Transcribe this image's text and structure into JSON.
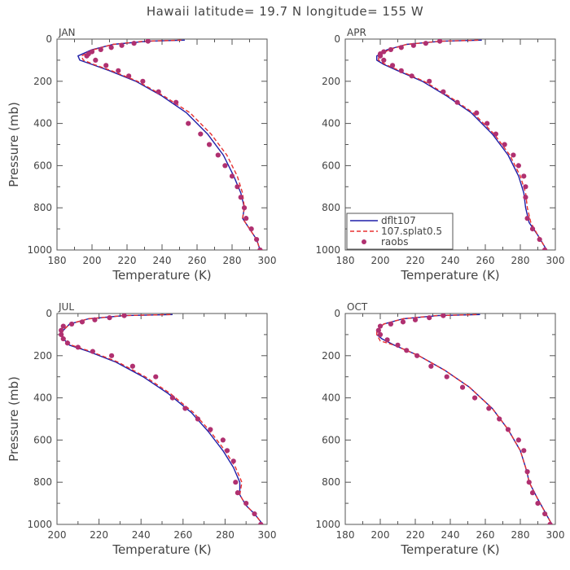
{
  "title": "Hawaii  latitude= 19.7 N longitude= 155 W",
  "colors": {
    "dflt": "#1f1fa8",
    "splat": "#e83030",
    "raobs": "#b03070",
    "axis": "#555555"
  },
  "legend": {
    "entries": [
      "dflt107",
      "107.splat0.5",
      "raobs"
    ],
    "panel": 1
  },
  "chart_data": [
    {
      "type": "line",
      "title": "JAN",
      "xlabel": "Temperature (K)",
      "ylabel": "Pressure (mb)",
      "xlim": [
        180,
        300
      ],
      "ylim": [
        1000,
        0
      ],
      "xticks": [
        "180",
        "200",
        "220",
        "240",
        "260",
        "280",
        "300"
      ],
      "yticks": [
        "0",
        "200",
        "400",
        "600",
        "800",
        "1000"
      ],
      "series": [
        {
          "name": "dflt107",
          "style": "solid",
          "x": [
            253,
            232,
            212,
            200,
            192,
            193,
            200,
            210,
            225,
            240,
            254,
            266,
            275,
            281,
            285,
            287,
            286,
            290,
            294,
            296
          ],
          "y": [
            5,
            10,
            25,
            50,
            80,
            100,
            120,
            150,
            200,
            270,
            350,
            450,
            550,
            650,
            730,
            800,
            850,
            900,
            950,
            1000
          ]
        },
        {
          "name": "107.splat0.5",
          "style": "dashed",
          "x": [
            251,
            230,
            212,
            201,
            194,
            195,
            201,
            211,
            226,
            241,
            256,
            268,
            277,
            283,
            286,
            287,
            286,
            290,
            294,
            296
          ],
          "y": [
            5,
            10,
            25,
            50,
            80,
            100,
            120,
            150,
            200,
            270,
            350,
            450,
            550,
            650,
            730,
            800,
            850,
            900,
            950,
            1000
          ]
        },
        {
          "name": "raobs",
          "style": "dots",
          "x": [
            232,
            224,
            217,
            211,
            205,
            200,
            198,
            197,
            202,
            208,
            215,
            221,
            229,
            238,
            248,
            255,
            262,
            267,
            272,
            276,
            280,
            283,
            285,
            287,
            288,
            291,
            294,
            296
          ],
          "y": [
            10,
            20,
            30,
            40,
            50,
            60,
            70,
            80,
            100,
            125,
            150,
            175,
            200,
            250,
            300,
            400,
            450,
            500,
            550,
            600,
            650,
            700,
            750,
            800,
            850,
            900,
            950,
            1000
          ]
        }
      ]
    },
    {
      "type": "line",
      "title": "APR",
      "xlabel": "Temperature (K)",
      "ylabel": "",
      "xlim": [
        180,
        300
      ],
      "ylim": [
        1000,
        0
      ],
      "xticks": [
        "180",
        "200",
        "220",
        "240",
        "260",
        "280",
        "300"
      ],
      "yticks": [
        "0",
        "200",
        "400",
        "600",
        "800",
        "1000"
      ],
      "series": [
        {
          "name": "dflt107",
          "style": "solid",
          "x": [
            258,
            235,
            215,
            204,
            198,
            198,
            202,
            210,
            224,
            238,
            252,
            264,
            273,
            279,
            282,
            283,
            285,
            290,
            295
          ],
          "y": [
            5,
            10,
            25,
            50,
            80,
            100,
            120,
            150,
            200,
            270,
            350,
            450,
            550,
            650,
            730,
            800,
            870,
            930,
            1000
          ]
        },
        {
          "name": "107.splat0.5",
          "style": "dashed",
          "x": [
            256,
            234,
            215,
            205,
            199,
            199,
            203,
            211,
            225,
            239,
            253,
            265,
            274,
            280,
            283,
            284,
            286,
            290,
            295
          ],
          "y": [
            5,
            10,
            25,
            50,
            80,
            100,
            120,
            150,
            200,
            270,
            350,
            450,
            550,
            650,
            730,
            800,
            870,
            930,
            1000
          ]
        },
        {
          "name": "raobs",
          "style": "dots",
          "x": [
            234,
            226,
            219,
            212,
            206,
            202,
            200,
            200,
            202,
            207,
            212,
            218,
            228,
            236,
            244,
            255,
            261,
            266,
            271,
            276,
            279,
            282,
            283,
            283,
            284,
            287,
            291,
            294
          ],
          "y": [
            10,
            20,
            30,
            40,
            50,
            60,
            70,
            80,
            100,
            125,
            150,
            175,
            200,
            250,
            300,
            350,
            400,
            450,
            500,
            550,
            600,
            650,
            700,
            750,
            850,
            900,
            950,
            1000
          ]
        }
      ]
    },
    {
      "type": "line",
      "title": "JUL",
      "xlabel": "Temperature (K)",
      "ylabel": "Pressure (mb)",
      "xlim": [
        200,
        300
      ],
      "ylim": [
        1000,
        0
      ],
      "xticks": [
        "200",
        "220",
        "240",
        "260",
        "280",
        "300"
      ],
      "yticks": [
        "0",
        "200",
        "400",
        "600",
        "800",
        "1000"
      ],
      "series": [
        {
          "name": "dflt107",
          "style": "solid",
          "x": [
            255,
            232,
            215,
            206,
            203,
            202,
            203,
            206,
            215,
            228,
            241,
            253,
            264,
            272,
            279,
            284,
            287,
            287,
            290,
            294,
            298
          ],
          "y": [
            5,
            10,
            25,
            50,
            80,
            100,
            120,
            150,
            180,
            230,
            300,
            380,
            470,
            560,
            650,
            730,
            800,
            860,
            910,
            950,
            1000
          ]
        },
        {
          "name": "107.splat0.5",
          "style": "dashed",
          "x": [
            254,
            231,
            215,
            206,
            203,
            202,
            204,
            207,
            216,
            229,
            242,
            254,
            265,
            273,
            280,
            285,
            288,
            287,
            290,
            294,
            298
          ],
          "y": [
            5,
            10,
            25,
            50,
            80,
            100,
            120,
            150,
            180,
            230,
            300,
            380,
            470,
            560,
            650,
            730,
            800,
            860,
            910,
            950,
            1000
          ]
        },
        {
          "name": "raobs",
          "style": "dots",
          "x": [
            232,
            225,
            218,
            212,
            207,
            203,
            202,
            202,
            203,
            205,
            210,
            217,
            226,
            236,
            247,
            255,
            261,
            267,
            273,
            279,
            281,
            284,
            285,
            286,
            290,
            294,
            297
          ],
          "y": [
            10,
            20,
            30,
            40,
            50,
            60,
            80,
            100,
            120,
            140,
            160,
            180,
            200,
            250,
            300,
            400,
            450,
            500,
            550,
            600,
            650,
            700,
            800,
            850,
            900,
            950,
            1000
          ]
        }
      ]
    },
    {
      "type": "line",
      "title": "OCT",
      "xlabel": "Temperature (K)",
      "ylabel": "",
      "xlim": [
        180,
        300
      ],
      "ylim": [
        1000,
        0
      ],
      "xticks": [
        "180",
        "200",
        "220",
        "240",
        "260",
        "280",
        "300"
      ],
      "yticks": [
        "0",
        "200",
        "400",
        "600",
        "800",
        "1000"
      ],
      "series": [
        {
          "name": "dflt107",
          "style": "solid",
          "x": [
            257,
            233,
            213,
            202,
            198,
            198,
            201,
            208,
            222,
            237,
            251,
            264,
            273,
            280,
            283,
            284,
            285,
            290,
            298
          ],
          "y": [
            5,
            10,
            25,
            50,
            80,
            100,
            120,
            150,
            200,
            270,
            350,
            450,
            550,
            650,
            730,
            760,
            800,
            880,
            1000
          ]
        },
        {
          "name": "107.splat0.5",
          "style": "dashed",
          "x": [
            255,
            232,
            213,
            202,
            198,
            198,
            200,
            208,
            222,
            237,
            251,
            264,
            273,
            280,
            283,
            284,
            285,
            290,
            298
          ],
          "y": [
            5,
            10,
            25,
            50,
            80,
            100,
            130,
            150,
            200,
            270,
            350,
            450,
            550,
            650,
            730,
            760,
            800,
            880,
            1000
          ]
        },
        {
          "name": "raobs",
          "style": "dots",
          "x": [
            236,
            228,
            220,
            213,
            206,
            200,
            199,
            200,
            204,
            210,
            215,
            221,
            229,
            238,
            247,
            254,
            262,
            268,
            273,
            279,
            282,
            284,
            285,
            287,
            290,
            294,
            297
          ],
          "y": [
            10,
            20,
            30,
            40,
            50,
            60,
            80,
            100,
            125,
            150,
            175,
            200,
            250,
            300,
            350,
            400,
            450,
            500,
            550,
            600,
            650,
            750,
            800,
            850,
            900,
            950,
            1000
          ]
        }
      ]
    }
  ]
}
